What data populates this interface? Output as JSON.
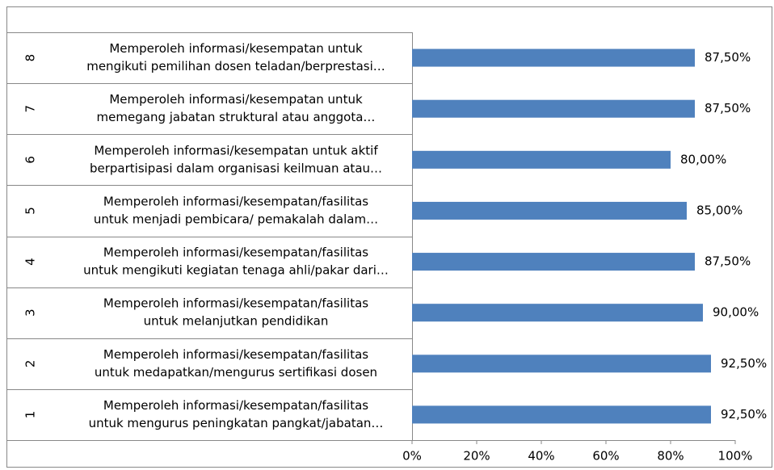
{
  "chart_data": {
    "type": "barh",
    "category_numbers": [
      "1",
      "2",
      "3",
      "4",
      "5",
      "6",
      "7",
      "8"
    ],
    "categories": [
      [
        "Memperoleh informasi/kesempatan/fasilitas",
        "untuk mengurus peningkatan pangkat/jabatan…"
      ],
      [
        "Memperoleh informasi/kesempatan/fasilitas",
        "untuk medapatkan/mengurus sertifikasi dosen"
      ],
      [
        "Memperoleh informasi/kesempatan/fasilitas",
        "untuk melanjutkan pendidikan"
      ],
      [
        "Memperoleh informasi/kesempatan/fasilitas",
        "untuk mengikuti kegiatan tenaga ahli/pakar dari…"
      ],
      [
        "Memperoleh informasi/kesempatan/fasilitas",
        "untuk menjadi pembicara/ pemakalah dalam…"
      ],
      [
        "Memperoleh informasi/kesempatan untuk aktif",
        "berpartisipasi dalam organisasi keilmuan atau…"
      ],
      [
        "Memperoleh informasi/kesempatan untuk",
        "memegang jabatan struktural atau anggota…"
      ],
      [
        "Memperoleh informasi/kesempatan untuk",
        "mengikuti pemilihan dosen teladan/berprestasi…"
      ]
    ],
    "values": [
      92.5,
      92.5,
      90,
      87.5,
      85,
      80,
      87.5,
      87.5
    ],
    "value_labels": [
      "92,50%",
      "92,50%",
      "90,00%",
      "87,50%",
      "85,00%",
      "80,00%",
      "87,50%",
      "87,50%"
    ],
    "color": "#4f81bd",
    "xlim": [
      0,
      100
    ],
    "xticks": [
      {
        "value": 0,
        "label": "0%"
      },
      {
        "value": 20,
        "label": "20%"
      },
      {
        "value": 40,
        "label": "40%"
      },
      {
        "value": 60,
        "label": "60%"
      },
      {
        "value": 80,
        "label": "80%"
      },
      {
        "value": 100,
        "label": "100%"
      }
    ]
  }
}
